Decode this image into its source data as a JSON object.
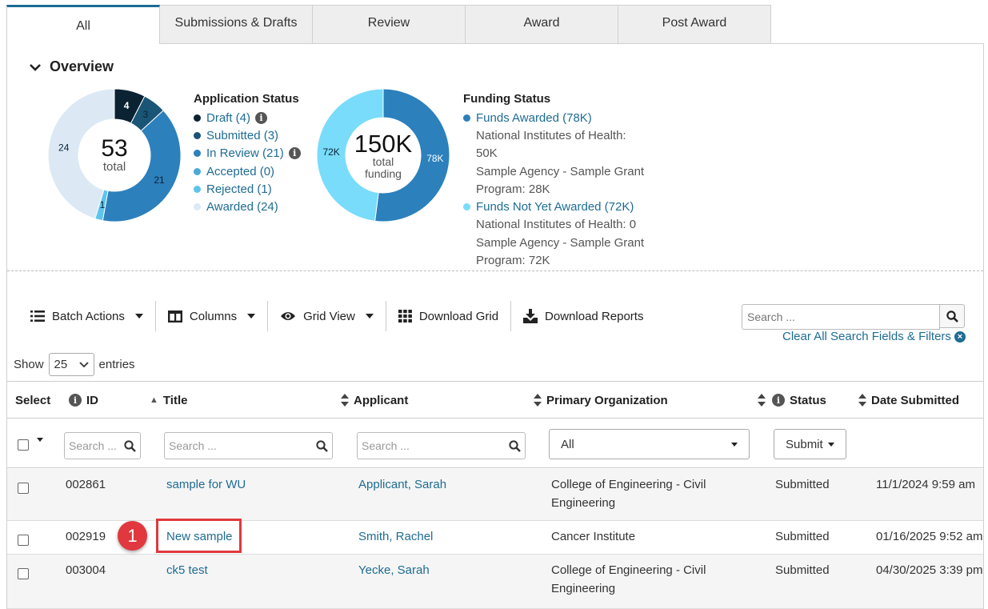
{
  "tabs": [
    "All",
    "Submissions & Drafts",
    "Review",
    "Award",
    "Post Award"
  ],
  "overview": {
    "title": "Overview",
    "application_chart": {
      "total": "53",
      "total_label": "total",
      "segment_labels": [
        "4",
        "3",
        "21",
        "1",
        "24"
      ],
      "values": [
        4,
        3,
        21,
        1,
        24
      ],
      "colors": [
        "#0b2233",
        "#1a5576",
        "#2c80bc",
        "#5dc4ee",
        "#dce9f5"
      ]
    },
    "application_status": {
      "title": "Application Status",
      "items": [
        {
          "label": "Draft (4)",
          "color": "#0b2233",
          "info": true
        },
        {
          "label": "Submitted (3)",
          "color": "#1a5576",
          "info": false
        },
        {
          "label": "In Review (21)",
          "color": "#2c80bc",
          "info": true
        },
        {
          "label": "Accepted (0)",
          "color": "#4aa9d9",
          "info": false
        },
        {
          "label": "Rejected (1)",
          "color": "#5dc4ee",
          "info": false
        },
        {
          "label": "Awarded (24)",
          "color": "#dce9f5",
          "info": false
        }
      ]
    },
    "funding_chart": {
      "total": "150K",
      "total_label_1": "total",
      "total_label_2": "funding",
      "segment_labels": [
        "78K",
        "72K"
      ],
      "values": [
        78,
        72
      ],
      "colors": [
        "#2c80bc",
        "#78dcfa"
      ]
    },
    "funding_status": {
      "title": "Funding Status",
      "awarded": "Funds Awarded (78K)",
      "awarded_color": "#2c80bc",
      "awarded_lines": [
        "National Institutes of Health:",
        "50K",
        "Sample Agency - Sample Grant",
        "Program: 28K"
      ],
      "not_awarded": "Funds Not Yet Awarded (72K)",
      "not_awarded_color": "#78dcfa",
      "not_awarded_lines": [
        "National Institutes of Health: 0",
        "Sample Agency - Sample Grant",
        "Program: 72K"
      ]
    }
  },
  "toolbar": {
    "batch_actions": "Batch Actions",
    "columns": "Columns",
    "grid_view": "Grid View",
    "download_grid": "Download Grid",
    "download_reports": "Download Reports",
    "search_placeholder": "Search ...",
    "clear_all": "Clear All Search Fields & Filters"
  },
  "entries": {
    "show": "Show",
    "value": "25",
    "suffix": "entries"
  },
  "table": {
    "headers": {
      "select": "Select",
      "id": "ID",
      "title": "Title",
      "applicant": "Applicant",
      "org": "Primary Organization",
      "status": "Status",
      "date": "Date Submitted"
    },
    "filters": {
      "search_placeholder": "Search ...",
      "org_value": "All",
      "status_value": "Submit"
    },
    "rows": [
      {
        "id": "002861",
        "title": "sample for WU",
        "applicant": "Applicant, Sarah",
        "org_1": "College of Engineering - Civil",
        "org_2": "Engineering",
        "status": "Submitted",
        "date": "11/1/2024 9:59 am"
      },
      {
        "id": "002919",
        "title": "New sample",
        "applicant": "Smith, Rachel",
        "org_1": "Cancer Institute",
        "org_2": "",
        "status": "Submitted",
        "date": "01/16/2025 9:52 am"
      },
      {
        "id": "003004",
        "title": "ck5 test",
        "applicant": "Yecke, Sarah",
        "org_1": "College of Engineering - Civil",
        "org_2": "Engineering",
        "status": "Submitted",
        "date": "04/30/2025 3:39 pm"
      }
    ]
  },
  "callout": {
    "number": "1",
    "color": "#e0383e"
  }
}
